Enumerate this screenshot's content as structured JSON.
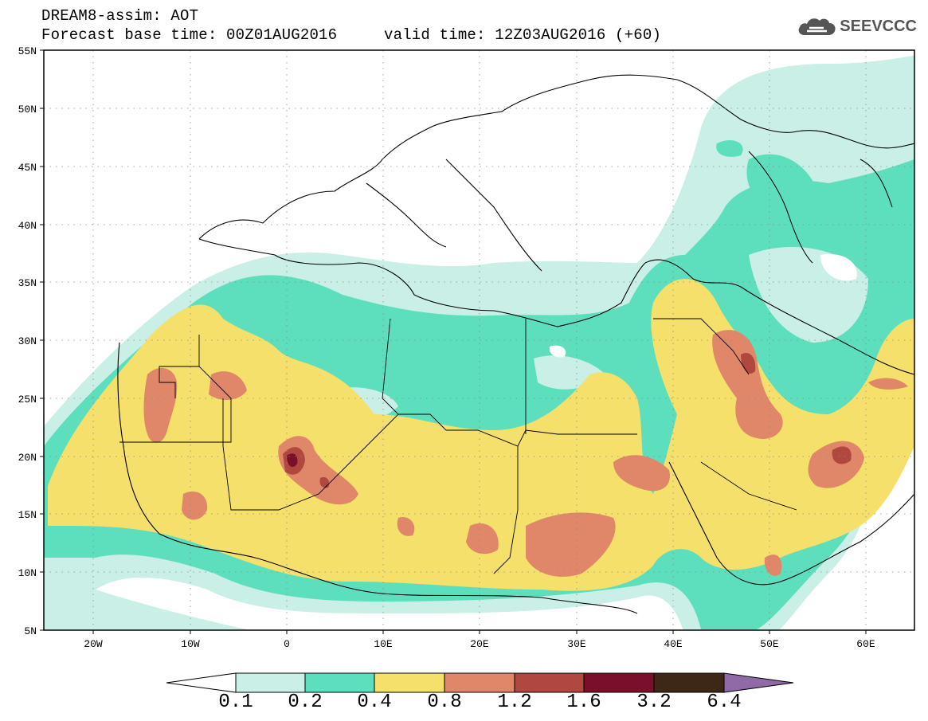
{
  "header": {
    "title": "DREAM8-assim: AOT",
    "base_time": "Forecast base time: 00Z01AUG2016",
    "valid_time": "valid time: 12Z03AUG2016 (+60)"
  },
  "logo": {
    "text": "SEEVCCC",
    "icon": "cloud-logo-icon"
  },
  "map": {
    "lat_labels": [
      "55N",
      "50N",
      "45N",
      "40N",
      "35N",
      "30N",
      "25N",
      "20N",
      "15N",
      "10N",
      "5N"
    ],
    "lon_labels": [
      "20W",
      "10W",
      "0",
      "10E",
      "20E",
      "30E",
      "40E",
      "50E",
      "60E"
    ],
    "extent": {
      "lon_min": -25,
      "lon_max": 65,
      "lat_min": 5,
      "lat_max": 55
    },
    "grid": "dotted"
  },
  "colorbar": {
    "labels": [
      "0.1",
      "0.2",
      "0.4",
      "0.8",
      "1.2",
      "1.6",
      "3.2",
      "6.4"
    ],
    "colors": [
      "#ffffff",
      "#c9efe6",
      "#5ddfbd",
      "#f5e06b",
      "#e0876a",
      "#b0483f",
      "#7a0f2a",
      "#3d2717",
      "#8f6aa6"
    ]
  },
  "palette": {
    "c01": "#c9efe6",
    "c02": "#5ddfbd",
    "c04": "#f5e06b",
    "c08": "#e0876a",
    "c12": "#b0483f",
    "c16": "#7a0f2a"
  }
}
